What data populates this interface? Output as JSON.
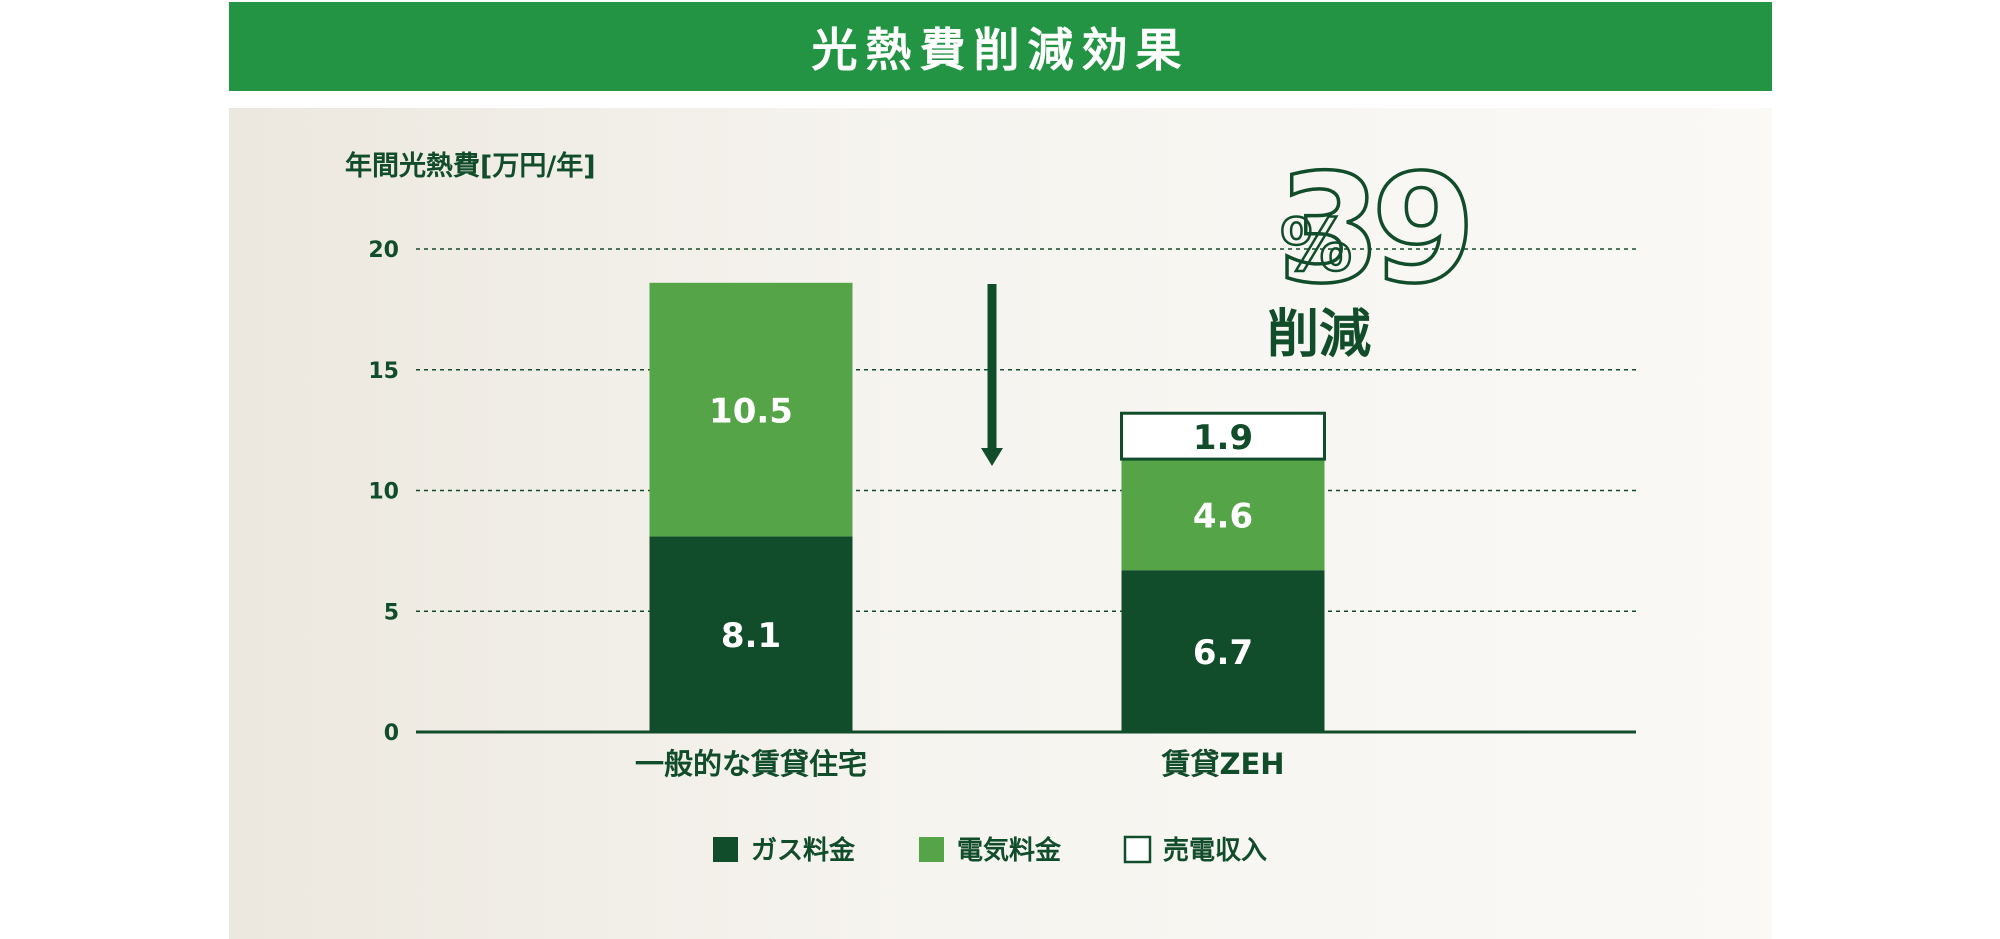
{
  "title": "光熱費削減効果",
  "colors": {
    "banner": "#239443",
    "dark_green": "#124d2b",
    "light_green": "#55a447",
    "white": "#ffffff"
  },
  "chart_data": {
    "type": "bar",
    "stacked": true,
    "ylabel": "年間光熱費[万円/年]",
    "ylim": [
      0,
      20
    ],
    "yticks": [
      0,
      5,
      10,
      15,
      20
    ],
    "grid": "dashed horizontal",
    "categories": [
      "一般的な賃貸住宅",
      "賃貸ZEH"
    ],
    "series": [
      {
        "name": "ガス料金",
        "values": [
          8.1,
          6.7
        ],
        "labels": [
          "8.1",
          "6.7"
        ],
        "color": "#124d2b"
      },
      {
        "name": "電気料金",
        "values": [
          10.5,
          4.6
        ],
        "labels": [
          "10.5",
          "4.6"
        ],
        "color": "#55a447"
      },
      {
        "name": "売電収入",
        "values": [
          null,
          1.9
        ],
        "labels": [
          "",
          "1.9"
        ],
        "color": "#ffffff"
      }
    ],
    "annotation": {
      "percent": "39",
      "unit": "%",
      "text": "削減",
      "arrow": "down"
    },
    "legend_position": "bottom"
  }
}
